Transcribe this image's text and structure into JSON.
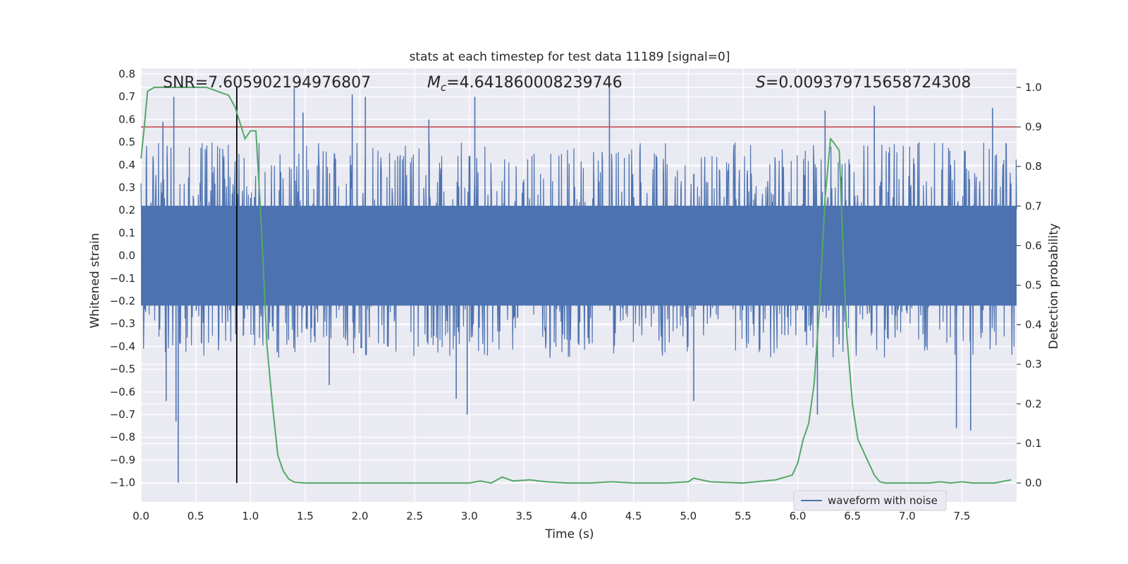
{
  "chart_data": {
    "type": "line",
    "title": "stats at each timestep for test data 11189 [signal=0]",
    "xlabel": "Time (s)",
    "ylabel": "Whitened strain",
    "y2label": "Detection probability",
    "xlim": [
      0,
      8
    ],
    "ylim": [
      -1.085,
      0.825
    ],
    "y2lim": [
      -0.048,
      1.048
    ],
    "xticks": [
      0.0,
      0.5,
      1.0,
      1.5,
      2.0,
      2.5,
      3.0,
      3.5,
      4.0,
      4.5,
      5.0,
      5.5,
      6.0,
      6.5,
      7.0,
      7.5
    ],
    "xtick_labels": [
      "0.0",
      "0.5",
      "1.0",
      "1.5",
      "2.0",
      "2.5",
      "3.0",
      "3.5",
      "4.0",
      "4.5",
      "5.0",
      "5.5",
      "6.0",
      "6.5",
      "7.0",
      "7.5"
    ],
    "yticks": [
      0.8,
      0.7,
      0.6,
      0.5,
      0.4,
      0.3,
      0.2,
      0.1,
      0.0,
      -0.1,
      -0.2,
      -0.3,
      -0.4,
      -0.5,
      -0.6,
      -0.7,
      -0.8,
      -0.9,
      -1.0
    ],
    "ytick_labels": [
      "0.8",
      "0.7",
      "0.6",
      "0.5",
      "0.4",
      "0.3",
      "0.2",
      "0.1",
      "0.0",
      "−0.1",
      "−0.2",
      "−0.3",
      "−0.4",
      "−0.5",
      "−0.6",
      "−0.7",
      "−0.8",
      "−0.9",
      "−1.0"
    ],
    "y2ticks": [
      1.0,
      0.9,
      0.8,
      0.7,
      0.6,
      0.5,
      0.4,
      0.3,
      0.2,
      0.1,
      0.0
    ],
    "y2tick_labels": [
      "1.0",
      "0.9",
      "0.8",
      "0.7",
      "0.6",
      "0.5",
      "0.4",
      "0.3",
      "0.2",
      "0.1",
      "0.0"
    ],
    "grid": true,
    "legend": {
      "position": "lower-right",
      "entries": [
        "waveform with noise"
      ]
    },
    "annotations": {
      "snr": "SNR=7.605902194976807",
      "mc_symbol": "M",
      "mc_sub": "c",
      "mc_value": "=4.641860008239746",
      "s_symbol": "S",
      "s_value": "=0.009379715658724308"
    },
    "threshold_line": {
      "axis": "y2",
      "value": 0.9,
      "color": "#c44e52"
    },
    "vertical_marker": {
      "x": 0.875,
      "color": "#000000"
    },
    "waveform": {
      "name": "waveform with noise",
      "color": "#4c72b0",
      "samples": 2048,
      "core_amplitude": 0.22,
      "typical_max": 0.5,
      "typical_min": -0.45,
      "spikes": [
        {
          "x": 0.3,
          "y": 0.7
        },
        {
          "x": 1.4,
          "y": 0.74
        },
        {
          "x": 1.48,
          "y": 0.63
        },
        {
          "x": 1.93,
          "y": 0.71
        },
        {
          "x": 2.05,
          "y": 0.7
        },
        {
          "x": 2.63,
          "y": 0.6
        },
        {
          "x": 3.05,
          "y": 0.7
        },
        {
          "x": 4.28,
          "y": 0.74
        },
        {
          "x": 6.25,
          "y": 0.64
        },
        {
          "x": 6.7,
          "y": 0.66
        },
        {
          "x": 7.78,
          "y": 0.65
        },
        {
          "x": 0.2,
          "y": 0.59
        },
        {
          "x": 0.34,
          "y": -1.0
        },
        {
          "x": 0.32,
          "y": -0.73
        },
        {
          "x": 0.23,
          "y": -0.64
        },
        {
          "x": 2.98,
          "y": -0.7
        },
        {
          "x": 2.88,
          "y": -0.63
        },
        {
          "x": 7.45,
          "y": -0.76
        },
        {
          "x": 7.58,
          "y": -0.77
        },
        {
          "x": 5.05,
          "y": -0.64
        },
        {
          "x": 6.18,
          "y": -0.7
        },
        {
          "x": 1.72,
          "y": -0.57
        }
      ]
    },
    "probability": {
      "name": "detection probability",
      "color": "#55a868",
      "x": [
        0.0,
        0.03,
        0.06,
        0.12,
        0.2,
        0.3,
        0.45,
        0.6,
        0.7,
        0.8,
        0.86,
        0.95,
        1.0,
        1.05,
        1.1,
        1.15,
        1.2,
        1.25,
        1.3,
        1.35,
        1.4,
        1.5,
        1.7,
        2.0,
        2.2,
        2.5,
        2.8,
        3.0,
        3.1,
        3.2,
        3.3,
        3.4,
        3.55,
        3.7,
        3.9,
        4.1,
        4.3,
        4.5,
        4.8,
        5.0,
        5.05,
        5.2,
        5.5,
        5.8,
        5.95,
        6.0,
        6.05,
        6.1,
        6.15,
        6.2,
        6.25,
        6.3,
        6.33,
        6.38,
        6.42,
        6.45,
        6.5,
        6.55,
        6.6,
        6.65,
        6.7,
        6.75,
        6.8,
        6.9,
        7.0,
        7.2,
        7.3,
        7.4,
        7.5,
        7.6,
        7.8,
        7.95
      ],
      "values": [
        0.82,
        0.9,
        0.99,
        1.0,
        1.0,
        1.0,
        1.0,
        1.0,
        0.99,
        0.98,
        0.95,
        0.87,
        0.89,
        0.89,
        0.65,
        0.35,
        0.2,
        0.07,
        0.03,
        0.01,
        0.002,
        0.0,
        0.0,
        0.0,
        0.0,
        0.0,
        0.0,
        0.0,
        0.005,
        0.0,
        0.015,
        0.005,
        0.008,
        0.003,
        0.0,
        0.0,
        0.003,
        0.0,
        0.0,
        0.003,
        0.012,
        0.003,
        0.0,
        0.008,
        0.02,
        0.05,
        0.11,
        0.15,
        0.25,
        0.45,
        0.72,
        0.87,
        0.86,
        0.84,
        0.55,
        0.37,
        0.2,
        0.11,
        0.08,
        0.05,
        0.02,
        0.003,
        0.0,
        0.0,
        0.0,
        0.0,
        0.003,
        0.0,
        0.003,
        0.0,
        0.0,
        0.008
      ]
    },
    "colors": {
      "background": "#eaeaf2",
      "grid": "#ffffff",
      "text": "#262626"
    }
  }
}
